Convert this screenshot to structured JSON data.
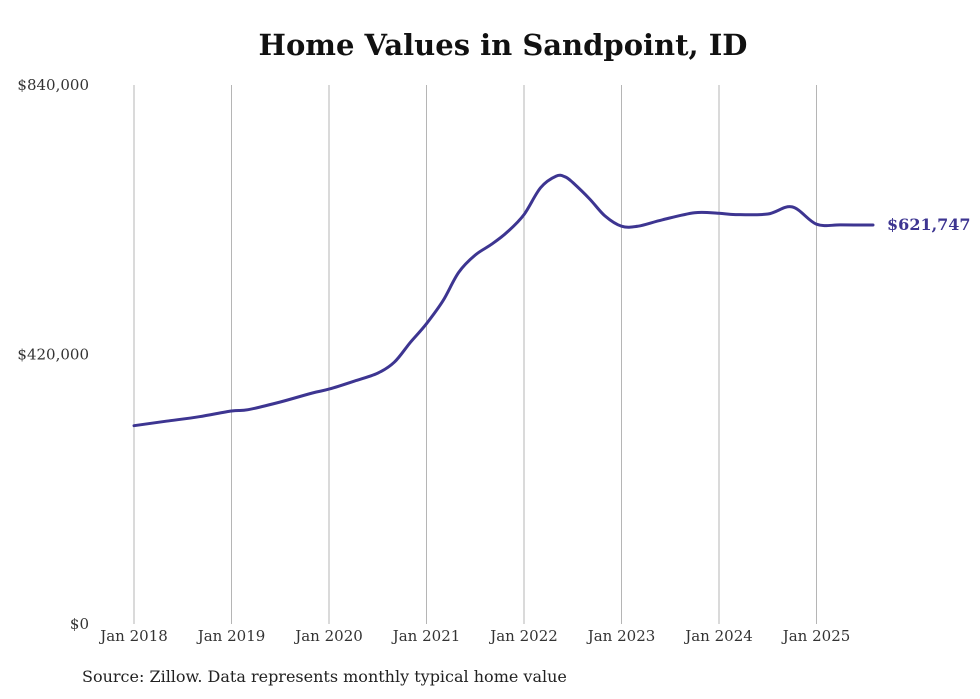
{
  "chart_data": {
    "type": "line",
    "title": "Home Values in Sandpoint, ID",
    "source": "Source: Zillow. Data represents monthly typical home value",
    "end_label": "$621,747",
    "line_color": "#3d3591",
    "y_ticks": [
      {
        "value": 840000,
        "label": "$840,000"
      },
      {
        "value": 420000,
        "label": "$420,000"
      },
      {
        "value": 0,
        "label": "$0"
      }
    ],
    "x_ticks": [
      {
        "value": 2018,
        "label": "Jan 2018"
      },
      {
        "value": 2019,
        "label": "Jan 2019"
      },
      {
        "value": 2020,
        "label": "Jan 2020"
      },
      {
        "value": 2021,
        "label": "Jan 2021"
      },
      {
        "value": 2022,
        "label": "Jan 2022"
      },
      {
        "value": 2023,
        "label": "Jan 2023"
      },
      {
        "value": 2024,
        "label": "Jan 2024"
      },
      {
        "value": 2025,
        "label": "Jan 2025"
      }
    ],
    "xlim": [
      2018,
      2025.58
    ],
    "ylim": [
      0,
      840000
    ],
    "series": [
      {
        "x": [
          2018.0,
          2018.33,
          2018.67,
          2019.0,
          2019.17,
          2019.5,
          2019.83,
          2020.0,
          2020.25,
          2020.5,
          2020.67,
          2020.83,
          2021.0,
          2021.17,
          2021.33,
          2021.5,
          2021.67,
          2021.83,
          2022.0,
          2022.17,
          2022.33,
          2022.42,
          2022.5,
          2022.67,
          2022.83,
          2023.0,
          2023.17,
          2023.42,
          2023.75,
          2024.0,
          2024.17,
          2024.5,
          2024.75,
          2025.0,
          2025.25,
          2025.58
        ],
        "y": [
          309000,
          316000,
          323000,
          332000,
          334000,
          346000,
          360000,
          366000,
          378000,
          391000,
          408000,
          438000,
          468000,
          504000,
          548000,
          575000,
          592000,
          611000,
          638000,
          680000,
          698000,
          697000,
          688000,
          663000,
          636000,
          620000,
          620000,
          630000,
          641000,
          640000,
          638000,
          639000,
          650000,
          623000,
          622000,
          621747
        ]
      }
    ]
  }
}
